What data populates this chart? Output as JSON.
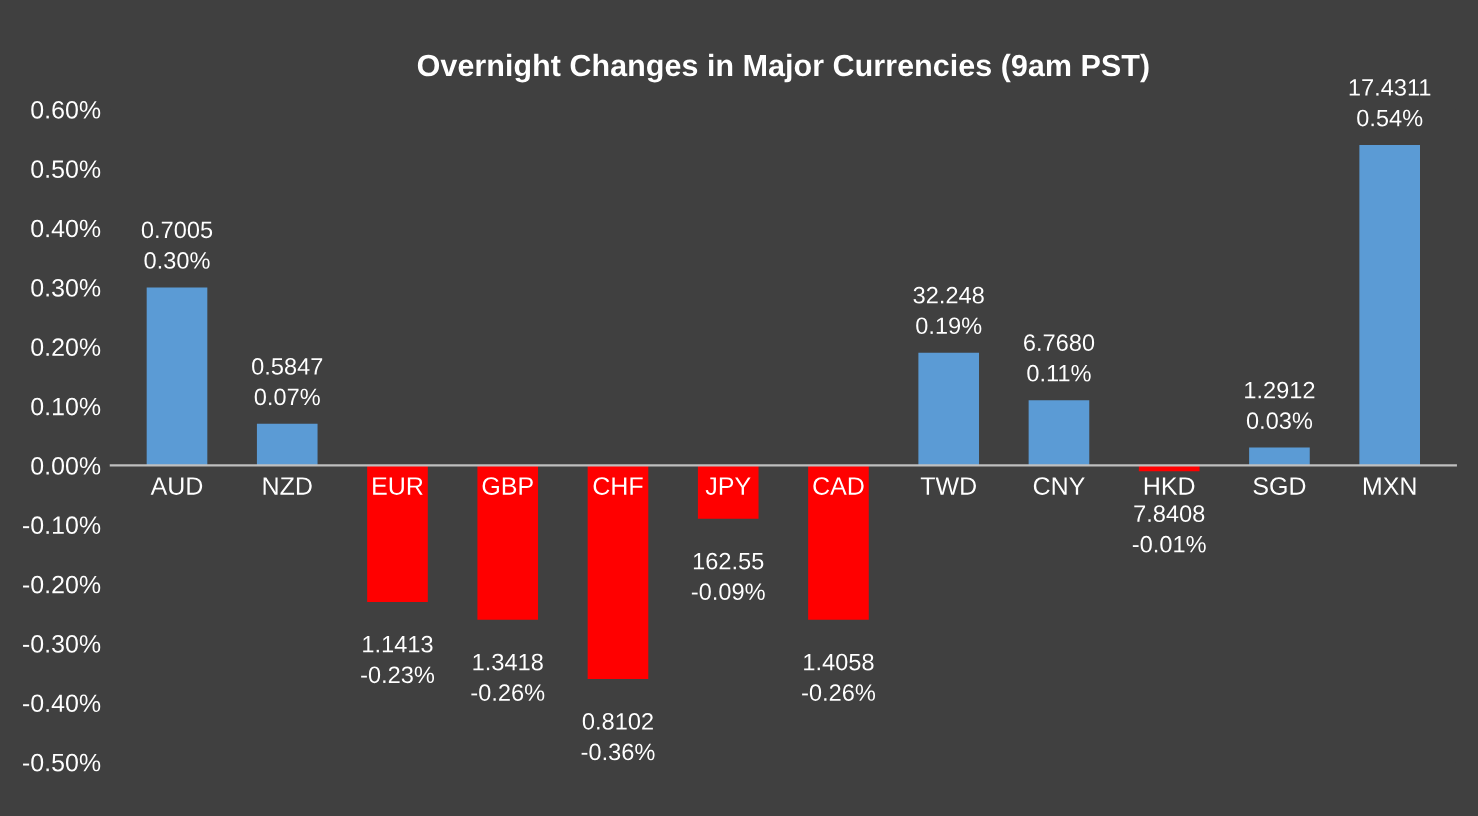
{
  "chart_data": {
    "type": "bar",
    "title": "Overnight Changes in Major Currencies (9am PST)",
    "categories": [
      "AUD",
      "NZD",
      "EUR",
      "GBP",
      "CHF",
      "JPY",
      "CAD",
      "TWD",
      "CNY",
      "HKD",
      "SGD",
      "MXN"
    ],
    "values": [
      0.3,
      0.07,
      -0.23,
      -0.26,
      -0.36,
      -0.09,
      -0.26,
      0.19,
      0.11,
      -0.01,
      0.03,
      0.54
    ],
    "colors": [
      "#5b9bd5",
      "#5b9bd5",
      "#ff0000",
      "#ff0000",
      "#ff0000",
      "#ff0000",
      "#ff0000",
      "#5b9bd5",
      "#5b9bd5",
      "#ff0000",
      "#5b9bd5",
      "#5b9bd5"
    ],
    "value_labels": [
      "0.7005\n0.30%",
      "0.5847\n0.07%",
      "1.1413\n-0.23%",
      "1.3418\n-0.26%",
      "0.8102\n-0.36%",
      "162.55\n-0.09%",
      "1.4058\n-0.26%",
      "32.248\n0.19%",
      "6.7680\n0.11%",
      "7.8408\n-0.01%",
      "1.2912\n0.03%",
      "17.4311\n0.54%"
    ],
    "ylim": [
      -0.5,
      0.6
    ],
    "yticks": [
      {
        "value": -0.5,
        "label": "-0.50%"
      },
      {
        "value": -0.4,
        "label": "-0.40%"
      },
      {
        "value": -0.3,
        "label": "-0.30%"
      },
      {
        "value": -0.2,
        "label": "-0.20%"
      },
      {
        "value": -0.1,
        "label": "-0.10%"
      },
      {
        "value": 0,
        "label": "0.00%"
      },
      {
        "value": 0.1,
        "label": "0.10%"
      },
      {
        "value": 0.2,
        "label": "0.20%"
      },
      {
        "value": 0.3,
        "label": "0.30%"
      },
      {
        "value": 0.4,
        "label": "0.40%"
      },
      {
        "value": 0.5,
        "label": "0.50%"
      },
      {
        "value": 0.6,
        "label": "0.60%"
      }
    ],
    "grid": false,
    "legend": false
  }
}
